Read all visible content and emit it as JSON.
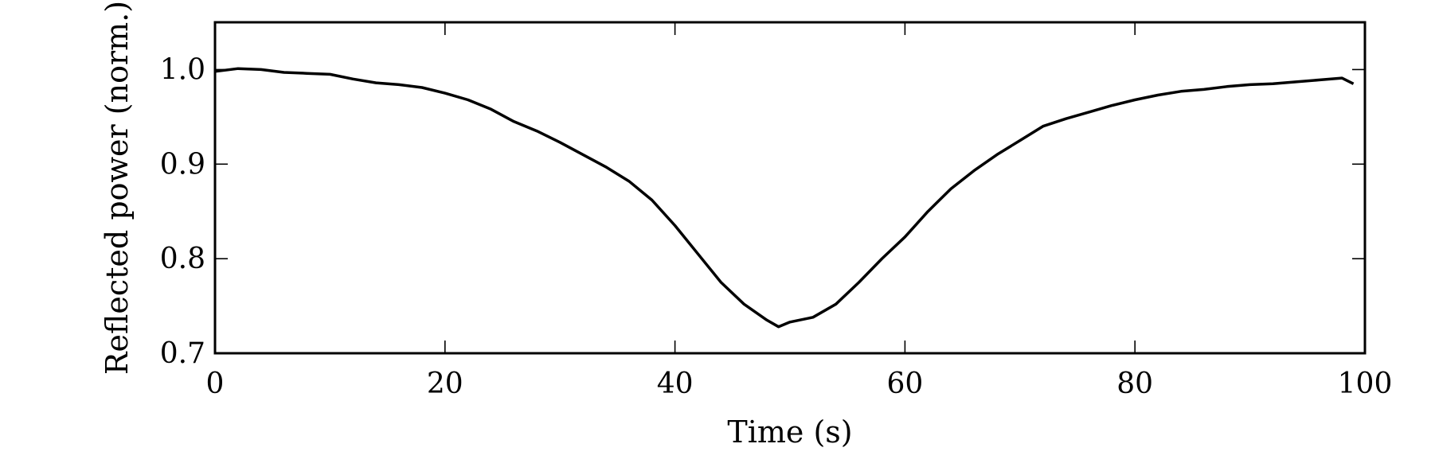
{
  "chart_data": {
    "type": "line",
    "title": "",
    "xlabel": "Time (s)",
    "ylabel": "Reflected power (norm.)",
    "xlim": [
      0,
      100
    ],
    "ylim": [
      0.7,
      1.05
    ],
    "xticks": [
      0,
      20,
      40,
      60,
      80,
      100
    ],
    "yticks": [
      0.7,
      0.8,
      0.9,
      1.0
    ],
    "xtick_labels": [
      "0",
      "20",
      "40",
      "60",
      "80",
      "100"
    ],
    "ytick_labels": [
      "0.7",
      "0.8",
      "0.9",
      "1.0"
    ],
    "grid": false,
    "legend": "none",
    "series": [
      {
        "color": "#000000",
        "x": [
          0,
          2,
          4,
          6,
          8,
          10,
          12,
          14,
          16,
          18,
          20,
          22,
          24,
          26,
          28,
          30,
          32,
          34,
          36,
          38,
          40,
          42,
          44,
          46,
          48,
          49,
          50,
          52,
          54,
          56,
          58,
          60,
          62,
          64,
          66,
          68,
          70,
          72,
          74,
          76,
          78,
          80,
          82,
          84,
          86,
          88,
          90,
          92,
          94,
          96,
          98,
          99
        ],
        "y": [
          0.998,
          1.001,
          1.0,
          0.997,
          0.996,
          0.995,
          0.99,
          0.986,
          0.984,
          0.981,
          0.975,
          0.968,
          0.958,
          0.945,
          0.935,
          0.923,
          0.91,
          0.897,
          0.882,
          0.862,
          0.835,
          0.805,
          0.775,
          0.752,
          0.735,
          0.728,
          0.733,
          0.738,
          0.752,
          0.775,
          0.8,
          0.823,
          0.85,
          0.874,
          0.893,
          0.91,
          0.925,
          0.94,
          0.948,
          0.955,
          0.962,
          0.968,
          0.973,
          0.977,
          0.979,
          0.982,
          0.984,
          0.985,
          0.987,
          0.989,
          0.991,
          0.985
        ]
      }
    ]
  }
}
